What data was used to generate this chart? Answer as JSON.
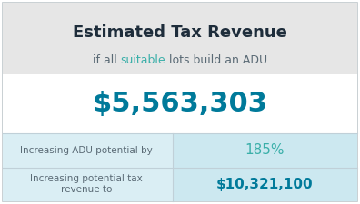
{
  "title": "Estimated Tax Revenue",
  "subtitle_part1": "if all ",
  "subtitle_highlight": "suitable",
  "subtitle_part2": " lots build an ADU",
  "main_value": "$5,563,303",
  "row1_label": "Increasing ADU potential by",
  "row1_value": "185%",
  "row2_label": "Increasing potential tax\nrevenue to",
  "row2_value": "$10,321,100",
  "bg_gray": "#e6e6e6",
  "bg_white": "#ffffff",
  "bg_light_blue": "#daeef4",
  "bg_right_blue": "#cce8f0",
  "title_color": "#1e2d3b",
  "subtitle_color": "#5a6a75",
  "subtitle_highlight_color": "#3aafa9",
  "main_value_color": "#007a9a",
  "row_label_color": "#5a6a75",
  "row1_value_color": "#3aafa9",
  "row2_value_color": "#007a9a",
  "border_color": "#c0c8cc",
  "divider_color": "#c0d0d8",
  "fig_width": 3.96,
  "fig_height": 2.25,
  "dpi": 100
}
